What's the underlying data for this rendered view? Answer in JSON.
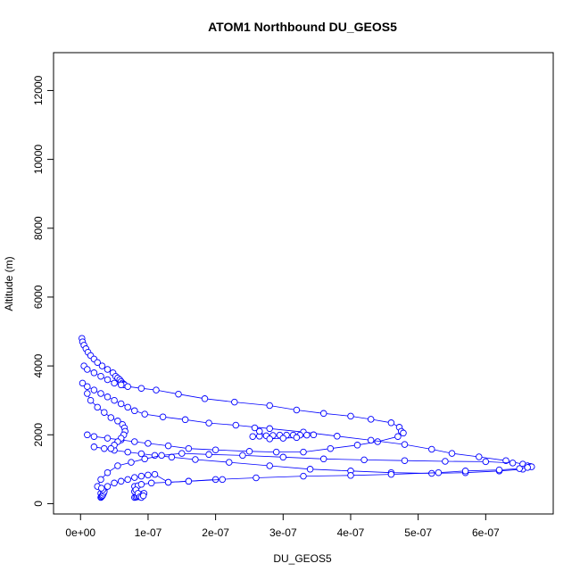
{
  "chart_data": {
    "type": "scatter",
    "title": "ATOM1 Northbound DU_GEOS5",
    "xlabel": "DU_GEOS5",
    "ylabel": "Altitude (m)",
    "xlim": [
      -4e-08,
      7e-07
    ],
    "ylim": [
      -300,
      13100
    ],
    "x_ticks": [
      0,
      1e-07,
      2e-07,
      3e-07,
      4e-07,
      5e-07,
      6e-07
    ],
    "x_tick_labels": [
      "0e+00",
      "1e-07",
      "2e-07",
      "3e-07",
      "4e-07",
      "5e-07",
      "6e-07"
    ],
    "y_ticks": [
      0,
      2000,
      4000,
      6000,
      8000,
      10000,
      12000
    ],
    "y_tick_labels": [
      "0",
      "2000",
      "4000",
      "6000",
      "8000",
      "10000",
      "12000"
    ],
    "grid": false,
    "legend": "none",
    "marker": "open-circle",
    "line_style": "lines-and-points",
    "colors": {
      "series": "#0000ff",
      "axis": "#000000",
      "background": "#ffffff"
    },
    "series": [
      {
        "x": [
          2e-09,
          3e-09,
          5e-09,
          8e-09,
          1.1e-08,
          1.5e-08,
          2e-08,
          2.5e-08,
          3.2e-08,
          4e-08,
          4.8e-08,
          5.2e-08,
          5.5e-08,
          5.8e-08,
          6e-08,
          6.2e-08,
          6.4e-08,
          6.5e-08
        ],
        "y": [
          4800,
          4700,
          4600,
          4500,
          4400,
          4300,
          4200,
          4100,
          4000,
          3900,
          3800,
          3700,
          3650,
          3600,
          3550,
          3500,
          3470,
          3450
        ]
      },
      {
        "x": [
          5e-09,
          1e-08,
          2e-08,
          3e-08,
          4e-08,
          5e-08,
          6e-08,
          7e-08,
          9e-08,
          1.12e-07,
          1.45e-07,
          1.84e-07,
          2.28e-07,
          2.8e-07,
          3.2e-07,
          3.6e-07,
          4e-07,
          4.3e-07,
          4.6e-07,
          4.72e-07,
          4.75e-07
        ],
        "y": [
          4000,
          3900,
          3800,
          3700,
          3600,
          3500,
          3450,
          3400,
          3350,
          3300,
          3180,
          3050,
          2950,
          2850,
          2720,
          2620,
          2540,
          2450,
          2350,
          2220,
          2100
        ]
      },
      {
        "x": [
          4.78e-07,
          4.7e-07,
          4.4e-07,
          4.1e-07,
          3.7e-07,
          3.3e-07,
          2.9e-07,
          2.5e-07,
          2e-07,
          1.6e-07,
          1.3e-07,
          1e-07,
          8e-08,
          6e-08,
          4e-08,
          2e-08,
          1e-08
        ],
        "y": [
          2050,
          1950,
          1800,
          1700,
          1600,
          1500,
          1500,
          1520,
          1560,
          1600,
          1680,
          1750,
          1800,
          1850,
          1900,
          1950,
          2000
        ]
      },
      {
        "x": [
          3e-09,
          1e-08,
          2e-08,
          3e-08,
          4e-08,
          5e-08,
          6e-08,
          7e-08,
          8e-08,
          9.5e-08,
          1.22e-07,
          1.55e-07,
          1.9e-07,
          2.3e-07,
          2.8e-07,
          3.3e-07,
          3.8e-07,
          4.3e-07,
          4.8e-07,
          5.2e-07,
          5.5e-07,
          5.9e-07,
          6.3e-07,
          6.55e-07,
          6.62e-07,
          6.66e-07
        ],
        "y": [
          3500,
          3400,
          3300,
          3200,
          3100,
          3000,
          2900,
          2800,
          2700,
          2600,
          2520,
          2440,
          2340,
          2280,
          2180,
          2080,
          1960,
          1840,
          1720,
          1580,
          1460,
          1360,
          1250,
          1150,
          1100,
          1080
        ]
      },
      {
        "x": [
          6.68e-07,
          6.55e-07,
          6.2e-07,
          5.7e-07,
          5.2e-07,
          4.6e-07,
          4e-07,
          3.4e-07,
          2.8e-07,
          2.2e-07,
          1.7e-07,
          1.35e-07,
          1.1e-07,
          9e-08,
          7e-08,
          5e-08,
          3.5e-08,
          2e-08
        ],
        "y": [
          1070,
          1000,
          950,
          900,
          880,
          900,
          950,
          1000,
          1100,
          1200,
          1280,
          1350,
          1400,
          1450,
          1500,
          1550,
          1600,
          1650
        ]
      },
      {
        "x": [
          6.4e-07,
          6e-07,
          5.4e-07,
          4.8e-07,
          4.2e-07,
          3.6e-07,
          3e-07,
          2.4e-07,
          1.9e-07,
          1.5e-07,
          1.2e-07,
          9.5e-08,
          7.5e-08,
          5.5e-08,
          4e-08,
          3e-08,
          2.5e-08
        ],
        "y": [
          1180,
          1220,
          1230,
          1250,
          1270,
          1300,
          1350,
          1400,
          1430,
          1460,
          1400,
          1300,
          1200,
          1100,
          900,
          700,
          500
        ]
      },
      {
        "x": [
          1e-08,
          1.5e-08,
          2.5e-08,
          3.5e-08,
          4.5e-08,
          5.5e-08,
          6.2e-08,
          6.5e-08,
          6.6e-08,
          6.4e-08,
          6e-08,
          5.5e-08,
          5e-08,
          4.5e-08
        ],
        "y": [
          3200,
          3000,
          2800,
          2650,
          2500,
          2400,
          2300,
          2200,
          2100,
          2000,
          1900,
          1800,
          1700,
          1600
        ]
      },
      {
        "x": [
          2.55e-07,
          2.65e-07,
          2.75e-07,
          2.85e-07,
          2.95e-07,
          3.05e-07,
          3.15e-07,
          3.25e-07,
          3.35e-07,
          3.45e-07,
          3.2e-07,
          3e-07,
          2.8e-07,
          2.65e-07,
          2.58e-07
        ],
        "y": [
          1950,
          1960,
          1970,
          1980,
          1990,
          1990,
          1990,
          1990,
          1990,
          2000,
          1920,
          1900,
          1880,
          2100,
          2200
        ]
      },
      {
        "x": [
          8e-08,
          8.5e-08,
          9e-08,
          1.05e-07,
          1.3e-07,
          1.6e-07,
          2e-07,
          2.6e-07,
          3.3e-07,
          4e-07,
          4.6e-07,
          5.3e-07,
          5.7e-07,
          6.2e-07,
          6.5e-07,
          6.62e-07
        ],
        "y": [
          500,
          520,
          560,
          600,
          620,
          650,
          700,
          750,
          800,
          820,
          850,
          900,
          950,
          980,
          1020,
          1050
        ]
      },
      {
        "x": [
          3e-08,
          3.5e-08,
          4e-08,
          5e-08,
          6e-08,
          7e-08,
          8e-08,
          9e-08,
          1e-07,
          1.1e-07,
          1.3e-07,
          1.6e-07,
          2.1e-07
        ],
        "y": [
          300,
          400,
          500,
          600,
          650,
          700,
          760,
          800,
          830,
          850,
          620,
          650,
          700
        ]
      },
      {
        "x": [
          8e-08,
          8.2e-08,
          8.4e-08,
          8.6e-08,
          8.8e-08,
          9e-08,
          9.2e-08,
          9.4e-08,
          8e-08,
          8.2e-08,
          8.5e-08,
          8.8e-08,
          9e-08,
          9.3e-08
        ],
        "y": [
          180,
          190,
          200,
          210,
          220,
          250,
          280,
          300,
          350,
          400,
          300,
          200,
          180,
          230
        ]
      },
      {
        "x": [
          3e-08,
          3.1e-08,
          3.2e-08,
          3.3e-08,
          3.4e-08,
          3.5e-08,
          3.3e-08,
          3.1e-08
        ],
        "y": [
          180,
          200,
          220,
          250,
          300,
          350,
          400,
          450
        ]
      }
    ]
  }
}
